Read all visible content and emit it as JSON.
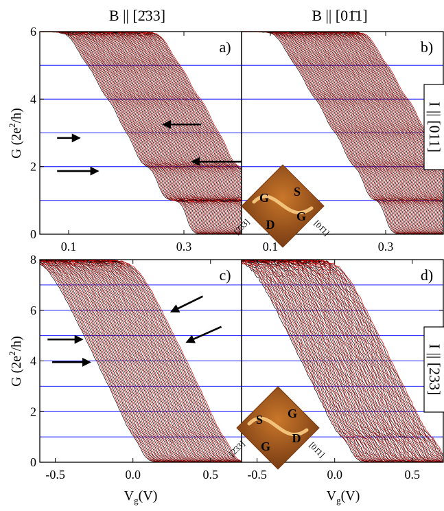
{
  "col_titles": [
    "B || [2̄33]",
    "B || [01̄1]"
  ],
  "row_labels": [
    "I || [011]",
    "I || [233]"
  ],
  "y_label": [
    "G (2e",
    "2",
    "/h)"
  ],
  "x_label": [
    "V",
    "g",
    "(V)"
  ],
  "colors": {
    "black": "#000000",
    "red": "#e00000",
    "plateau": "#1a1aff",
    "frame": "#000000",
    "sample": "#b0601e"
  },
  "chart_data": [
    {
      "type": "line",
      "panel": "a)",
      "xlim": [
        0.05,
        0.4
      ],
      "ylim": [
        0,
        6
      ],
      "xticks": [
        "0.1",
        "0.3"
      ],
      "xtick_values": [
        0.1,
        0.3
      ],
      "yticks": [
        "0",
        "2",
        "4",
        "6"
      ],
      "ytick_values": [
        0,
        2,
        4,
        6
      ],
      "hlines": [
        1,
        2,
        3,
        4,
        5
      ],
      "curve_count": 70,
      "curve_shift_range": [
        0.0,
        0.16
      ],
      "step_edges": [
        0.305,
        0.255,
        0.215,
        0.185,
        0.15,
        0.115
      ],
      "arrows": [
        {
          "from": [
            0.33,
            3.25
          ],
          "to": [
            0.265,
            3.25
          ]
        },
        {
          "from": [
            0.08,
            2.85
          ],
          "to": [
            0.118,
            2.85
          ]
        },
        {
          "from": [
            0.08,
            1.87
          ],
          "to": [
            0.15,
            1.87
          ]
        },
        {
          "from": [
            0.4,
            2.15
          ],
          "to": [
            0.315,
            2.15
          ]
        }
      ],
      "inset": null
    },
    {
      "type": "line",
      "panel": "b)",
      "xlim": [
        0.05,
        0.4
      ],
      "ylim": [
        0,
        6
      ],
      "xticks": [
        "0.1",
        "0.3"
      ],
      "xtick_values": [
        0.1,
        0.3
      ],
      "yticks": [],
      "ytick_values": [
        0,
        2,
        4,
        6
      ],
      "hlines": [
        1,
        2,
        3,
        4,
        5
      ],
      "curve_count": 70,
      "curve_shift_range": [
        0.0,
        0.16
      ],
      "step_edges": [
        0.3,
        0.262,
        0.228,
        0.195,
        0.16,
        0.125
      ],
      "arrows": [],
      "inset": {
        "labels": [
          "G",
          "S",
          "D",
          "G"
        ],
        "axes": [
          "[2̄33]",
          "[01̄1]"
        ]
      }
    },
    {
      "type": "line",
      "panel": "c)",
      "xlim": [
        -0.6,
        0.7
      ],
      "ylim": [
        0,
        8
      ],
      "xticks": [
        "-0.5",
        "0.0",
        "0.5"
      ],
      "xtick_values": [
        -0.5,
        0.0,
        0.5
      ],
      "yticks": [
        "0",
        "2",
        "4",
        "6",
        "8"
      ],
      "ytick_values": [
        0,
        2,
        4,
        6,
        8
      ],
      "hlines": [
        1,
        2,
        3,
        4,
        5,
        6,
        7
      ],
      "curve_count": 60,
      "curve_shift_range": [
        0.0,
        0.58
      ],
      "step_edges": [
        0.05,
        -0.05,
        -0.12,
        -0.2,
        -0.28,
        -0.36,
        -0.44,
        -0.52
      ],
      "arrows": [
        {
          "from": [
            0.45,
            6.55
          ],
          "to": [
            0.25,
            5.95
          ]
        },
        {
          "from": [
            -0.55,
            4.85
          ],
          "to": [
            -0.33,
            4.85
          ]
        },
        {
          "from": [
            0.57,
            5.35
          ],
          "to": [
            0.35,
            4.75
          ]
        },
        {
          "from": [
            -0.52,
            3.95
          ],
          "to": [
            -0.28,
            3.95
          ]
        }
      ],
      "inset": null
    },
    {
      "type": "line",
      "panel": "d)",
      "xlim": [
        -0.6,
        0.7
      ],
      "ylim": [
        0,
        8
      ],
      "xticks": [
        "-0.5",
        "0.0",
        "0.5"
      ],
      "xtick_values": [
        -0.5,
        0.0,
        0.5
      ],
      "yticks": [],
      "ytick_values": [
        0,
        2,
        4,
        6,
        8
      ],
      "hlines": [
        1,
        2,
        3,
        4,
        5,
        6,
        7
      ],
      "curve_count": 60,
      "curve_shift_range": [
        0.0,
        0.58
      ],
      "step_edges": [
        0.1,
        -0.02,
        -0.1,
        -0.18,
        -0.26,
        -0.34,
        -0.42,
        -0.5
      ],
      "arrows": [],
      "inset": {
        "labels": [
          "S",
          "G",
          "G",
          "D"
        ],
        "axes": [
          "[2̄33]",
          "[01̄1]"
        ]
      }
    }
  ]
}
